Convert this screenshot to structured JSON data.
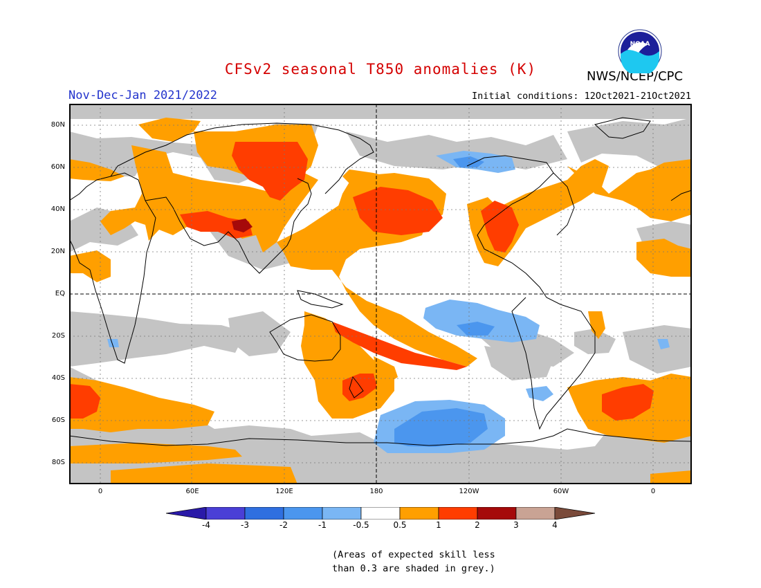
{
  "header": {
    "title": "CFSv2 seasonal T850 anomalies (K)",
    "season": "Nov-Dec-Jan 2021/2022",
    "initial_conditions": "Initial conditions: 12Oct2021-21Oct2021",
    "agency": "NWS/NCEP/CPC",
    "logo_text": "NOAA"
  },
  "map": {
    "lat_labels": [
      "80N",
      "60N",
      "40N",
      "20N",
      "EQ",
      "20S",
      "40S",
      "60S",
      "80S"
    ],
    "lon_labels": [
      "0",
      "60E",
      "120E",
      "180",
      "120W",
      "60W",
      "0"
    ]
  },
  "legend": {
    "tick_labels": [
      "-4",
      "-3",
      "-2",
      "-1",
      "-0.5",
      "0.5",
      "1",
      "2",
      "3",
      "4"
    ],
    "colors": [
      "#2a1aa8",
      "#4a3fd6",
      "#2f6fe0",
      "#4b96ee",
      "#7ab6f4",
      "#ffffff",
      "#ff9f00",
      "#ff3d00",
      "#a50a0a",
      "#c9a394",
      "#7a4a3a"
    ],
    "skill_grey": "#c4c4c4"
  },
  "note": {
    "line1": "(Areas of expected skill less",
    "line2": "than 0.3 are shaded in grey.)"
  }
}
